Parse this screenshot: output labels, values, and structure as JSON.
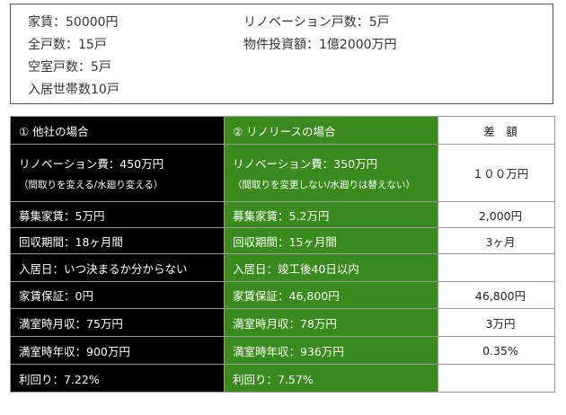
{
  "info": {
    "rent": "家賃：50000円",
    "total_units": "全戸数：15戸",
    "vacant_units": "空室戸数：5戸",
    "occupied": "入居世帯数10戸",
    "renovated_units": "リノベーション戸数：5戸",
    "investment": "物件投資額：1億2000万円"
  },
  "table": {
    "headers": [
      "① 他社の場合",
      "② リノリースの場合",
      "差　額"
    ],
    "rows": [
      {
        "a": "リノベーション費：450万円",
        "a_sub": "（間取りを変える/水廻り変える）",
        "b": "リノベーション費：350万円",
        "b_sub": "（間取りを変更しない/水廻りは替えない）",
        "c": "１００万円"
      },
      {
        "a": "募集家賃：5万円",
        "b": "募集家賃：5.2万円",
        "c": "2,000円"
      },
      {
        "a": "回収期間：18ヶ月間",
        "b": "回収期間：15ヶ月間",
        "c": "3ヶ月"
      },
      {
        "a": "入居日：いつ決まるか分からない",
        "b": "入居日：竣工後40日以内",
        "c": ""
      },
      {
        "a": "家賃保証：0円",
        "b": "家賃保証：46,800円",
        "c": "46,800円"
      },
      {
        "a": "満室時月収：75万円",
        "b": "満室時月収：78万円",
        "c": "3万円"
      },
      {
        "a": "満室時年収：900万円",
        "b": "満室時年収：936万円",
        "c": "0.35%"
      },
      {
        "a": "利回り：7.22%",
        "b": "利回り：7.57%",
        "c": ""
      }
    ]
  },
  "colors": {
    "col_a_bg": "#000000",
    "col_b_bg": "#3a8a1e",
    "col_c_bg": "#ffffff"
  }
}
